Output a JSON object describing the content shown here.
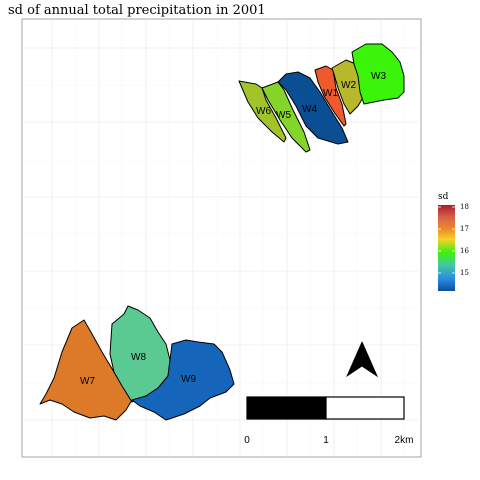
{
  "title": "sd of annual total precipitation in 2001",
  "legend": {
    "title": "sd",
    "ticks": [
      "18",
      "17",
      "16",
      "15"
    ],
    "gradient": [
      "#b2182b",
      "#d6604d",
      "#ee8a25",
      "#f6d12a",
      "#3cf30a",
      "#43c7a1",
      "#2b8fe0",
      "#0b4fa0"
    ]
  },
  "colors": {
    "W1": "#ef5a2c",
    "W2": "#b7b82a",
    "W3": "#3cf30a",
    "W4": "#0a4f93",
    "W5": "#84d42a",
    "W6": "#a2c42a",
    "W7": "#dc7a2a",
    "W8": "#5bc992",
    "W9": "#1566bb"
  },
  "map": {
    "watersheds": [
      {
        "id": "W1",
        "label": "W1",
        "value": 17.0
      },
      {
        "id": "W2",
        "label": "W2",
        "value": 16.2
      },
      {
        "id": "W3",
        "label": "W3",
        "value": 16.0
      },
      {
        "id": "W4",
        "label": "W4",
        "value": 14.4
      },
      {
        "id": "W5",
        "label": "W5",
        "value": 16.1
      },
      {
        "id": "W6",
        "label": "W6",
        "value": 16.2
      },
      {
        "id": "W7",
        "label": "W7",
        "value": 17.0
      },
      {
        "id": "W8",
        "label": "W8",
        "value": 15.5
      },
      {
        "id": "W9",
        "label": "W9",
        "value": 14.7
      }
    ],
    "north_arrow": "north-arrow-icon",
    "scalebar": {
      "labels": [
        "0",
        "1",
        "2km"
      ]
    }
  }
}
